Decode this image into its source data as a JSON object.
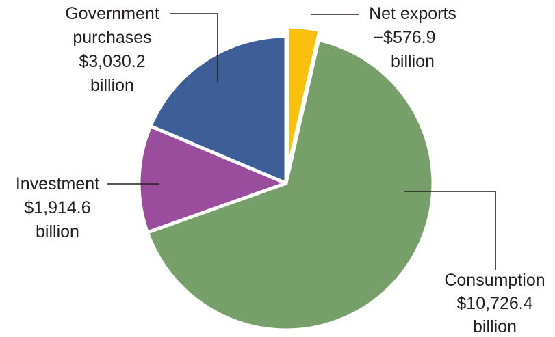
{
  "chart_data": {
    "type": "pie",
    "slices": [
      {
        "name": "Net exports",
        "value_label": "−$576.9",
        "unit_label": "billion",
        "value": 576.9,
        "color": "#f9c10e",
        "exploded": true
      },
      {
        "name": "Consumption",
        "value_label": "$10,726.4",
        "unit_label": "billion",
        "value": 10726.4,
        "color": "#779f69",
        "exploded": false
      },
      {
        "name": "Investment",
        "value_label": "$1,914.6",
        "unit_label": "billion",
        "value": 1914.6,
        "color": "#9a4c9d",
        "exploded": false
      },
      {
        "name": "Government purchases",
        "value_label": "$3,030.2",
        "unit_label": "billion",
        "value": 3030.2,
        "color": "#3e5e97",
        "exploded": false
      }
    ],
    "labels": {
      "government": {
        "line1": "Government",
        "line2": "purchases",
        "line3": "$3,030.2",
        "line4": "billion"
      },
      "net_exports": {
        "line1": "Net exports",
        "line2": "−$576.9",
        "line3": "billion"
      },
      "investment": {
        "line1": "Investment",
        "line2": "$1,914.6",
        "line3": "billion"
      },
      "consumption": {
        "line1": "Consumption",
        "line2": "$10,726.4",
        "line3": "billion"
      }
    }
  }
}
